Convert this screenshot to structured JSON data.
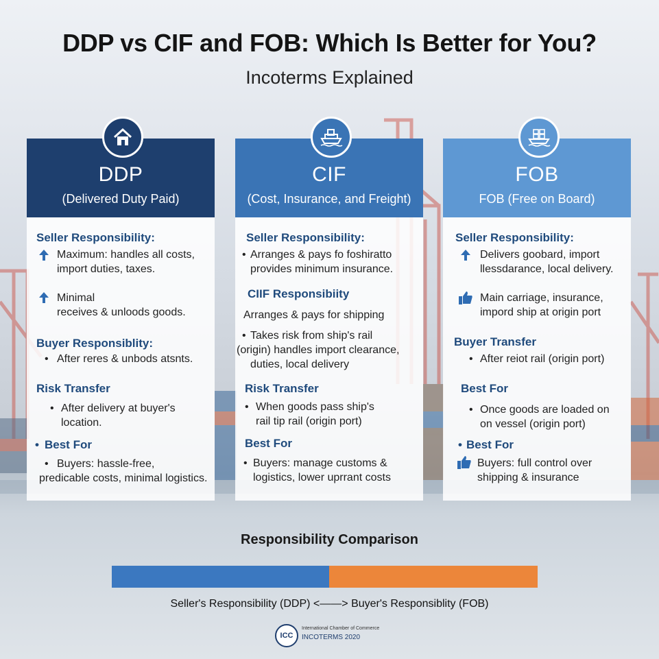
{
  "header": {
    "title": "DDP vs CIF and FOB: Which Is Better for You?",
    "subtitle": "Incoterms Explained"
  },
  "columns": [
    {
      "abbr": "DDP",
      "full": "(Delivered Duty Paid)",
      "icon": "house-icon",
      "head_color": "#1e3f6e",
      "seller_title": "Seller Responsibility:",
      "seller_line1": "Maximum: handles all costs,",
      "seller_line2": "import duties, taxes.",
      "minimal_line1": "Minimal",
      "minimal_line2": "receives & unloods goods.",
      "buyer_title": "Buyer Responsiblity:",
      "buyer_line1": "After reres & unbods atsnts.",
      "risk_title": "Risk Transfer",
      "risk_line1": "After delivery at buyer's",
      "risk_line2": "location.",
      "best_title": "Best For",
      "best_line1": "Buyers: hassle-free,",
      "best_line2": "predicable costs, minimal logistics."
    },
    {
      "abbr": "CIF",
      "full": "(Cost, Insurance, and Freight)",
      "icon": "ship-icon",
      "head_color": "#3a74b5",
      "seller_title": "Seller Responsibility:",
      "seller_line1": "Arranges & pays fo foshiratto",
      "seller_line2": "provides minimum insurance.",
      "ciif_title": "CIIF Responsibiity",
      "ciif_line1": "Arranges & pays for shipping",
      "ciif_line2": "Takes risk from ship's rail",
      "ciif_line3": "(origin) handles import clearance,",
      "ciif_line4": "duties, local delivery",
      "risk_title": "Risk Transfer",
      "risk_line1": "When goods pass ship's",
      "risk_line2": "rail tip rail (origin port)",
      "best_title": "Best For",
      "best_line1": "Buyers: manage customs &",
      "best_line2": "logistics, lower uprrant costs"
    },
    {
      "abbr": "FOB",
      "full": "FOB (Free on Board)",
      "icon": "cargo-ship-icon",
      "head_color": "#5e98d3",
      "seller_title": "Seller Responsibility:",
      "seller_line1": "Delivers goobard, import",
      "seller_line2": "llessdarance, local delivery.",
      "main_line1": "Main carriage, insurance,",
      "main_line2": "impord ship at origin port",
      "buyer_title": "Buyer Transfer",
      "buyer_line1": "After reiot rail (origin port)",
      "best1_title": "Best For",
      "best1_line1": "Once goods are loaded on",
      "best1_line2": "on vessel (origin port)",
      "best2_title": "Best For",
      "best2_line1": "Buyers: full control over",
      "best2_line2": "shipping & insurance"
    }
  ],
  "comparison": {
    "title": "Responsibility Comparison",
    "seller_share": 0.51,
    "buyer_share": 0.49,
    "seller_color": "#3b78c0",
    "buyer_color": "#ec863a",
    "legend": "Seller's Responsibility (DDP) <——> Buyer's Responsiblity (FOB)"
  },
  "footer": {
    "logo_text": "ICC",
    "org_name": "International Chamber of Commerce",
    "edition": "INCOTERMS 2020"
  }
}
